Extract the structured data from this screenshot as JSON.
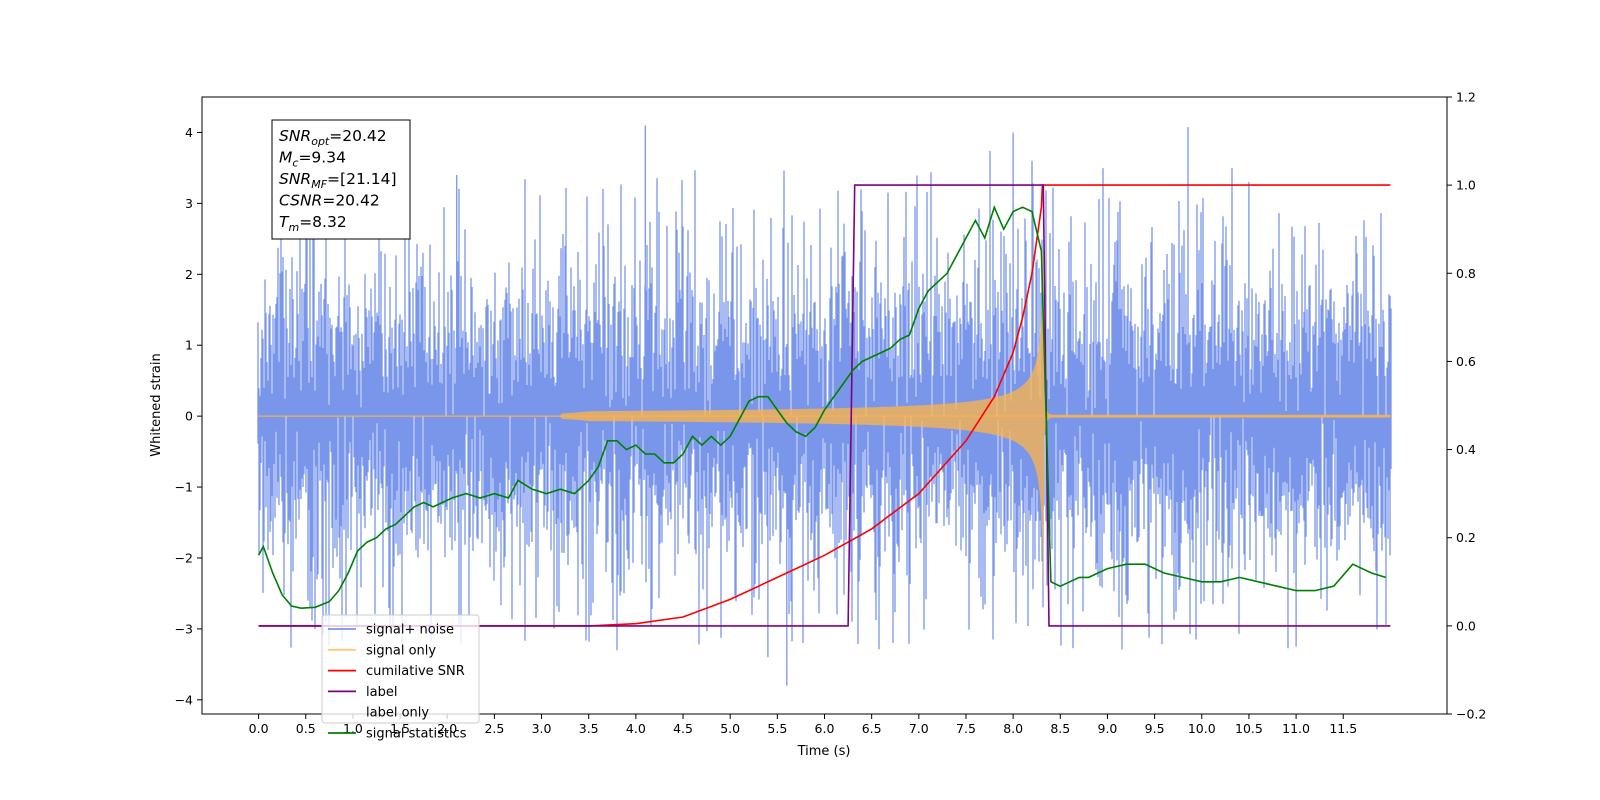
{
  "chart_data": {
    "type": "line",
    "xlabel": "Time (s)",
    "ylabel": "Whitened strain",
    "xlim": [
      -0.6,
      12.6
    ],
    "ylim": [
      -4.2,
      4.5
    ],
    "ylim_right": [
      -0.2,
      1.2
    ],
    "x_ticks": [
      "0.0",
      "0.5",
      "1.0",
      "1.5",
      "2.0",
      "2.5",
      "3.0",
      "3.5",
      "4.0",
      "4.5",
      "5.0",
      "5.5",
      "6.0",
      "6.5",
      "7.0",
      "7.5",
      "8.0",
      "8.5",
      "9.0",
      "9.5",
      "10.0",
      "10.5",
      "11.0",
      "11.5"
    ],
    "y_ticks_left": [
      "4",
      "3",
      "2",
      "1",
      "0",
      "−1",
      "−2",
      "−3",
      "−4"
    ],
    "y_ticks_right": [
      "1.2",
      "1.0",
      "0.8",
      "0.6",
      "0.4",
      "0.2",
      "0.0",
      "−0.2"
    ],
    "grid": false,
    "legend_placement": "lower-left",
    "info_box": {
      "lines": [
        {
          "base": "SNR",
          "sub": "opt",
          "value": "=20.42"
        },
        {
          "base": "M",
          "sub": "c",
          "value": "=9.34"
        },
        {
          "base": "SNR",
          "sub": "MF",
          "value": "=[21.14]"
        },
        {
          "base": "CSNR",
          "sub": "",
          "value": "=20.42"
        },
        {
          "base": "T",
          "sub": "m",
          "value": "=8.32"
        }
      ]
    },
    "series": [
      {
        "name": "signal+ noise",
        "color": "#4169e1",
        "alpha": 0.7,
        "axis": "left",
        "noise_std": 0.95,
        "x_range": [
          0.0,
          12.0
        ],
        "visible_peak_max": 4.1,
        "visible_peak_min": -3.8
      },
      {
        "name": "signal only",
        "color": "#ffb347",
        "alpha": 0.75,
        "axis": "left",
        "chirp_merger_time": 8.32,
        "chirp_end_amplitude": 3.0
      },
      {
        "name": "cumilative SNR",
        "color": "#ff0000",
        "axis": "right",
        "x": [
          0,
          3.5,
          4.0,
          4.5,
          5.0,
          5.5,
          6.0,
          6.5,
          7.0,
          7.5,
          7.8,
          8.0,
          8.1,
          8.2,
          8.3,
          8.31,
          12.0
        ],
        "y": [
          0,
          0,
          0.005,
          0.02,
          0.06,
          0.11,
          0.16,
          0.22,
          0.3,
          0.42,
          0.52,
          0.62,
          0.7,
          0.8,
          0.95,
          1.0,
          1.0
        ]
      },
      {
        "name": "label",
        "color": "#800080",
        "axis": "right",
        "x": [
          0,
          6.25,
          6.32,
          8.32,
          8.38,
          12.0
        ],
        "y": [
          0,
          0,
          1,
          1,
          0,
          0
        ]
      },
      {
        "name": "label only",
        "color": "#aaaaaa",
        "axis": "right",
        "legend_only": true
      },
      {
        "name": "signal statistics",
        "color": "#008000",
        "axis": "right",
        "x": [
          0,
          0.05,
          0.15,
          0.25,
          0.35,
          0.45,
          0.6,
          0.75,
          0.85,
          0.95,
          1.05,
          1.15,
          1.25,
          1.35,
          1.45,
          1.55,
          1.65,
          1.75,
          1.85,
          1.95,
          2.05,
          2.2,
          2.35,
          2.5,
          2.65,
          2.75,
          2.9,
          3.05,
          3.2,
          3.35,
          3.5,
          3.6,
          3.7,
          3.8,
          3.9,
          4.0,
          4.1,
          4.2,
          4.3,
          4.4,
          4.5,
          4.6,
          4.7,
          4.8,
          4.9,
          5.0,
          5.1,
          5.2,
          5.3,
          5.4,
          5.5,
          5.6,
          5.7,
          5.8,
          5.9,
          6.0,
          6.1,
          6.2,
          6.3,
          6.4,
          6.5,
          6.6,
          6.7,
          6.8,
          6.9,
          7.0,
          7.1,
          7.2,
          7.3,
          7.4,
          7.5,
          7.6,
          7.7,
          7.8,
          7.9,
          8.0,
          8.1,
          8.2,
          8.3,
          8.4,
          8.5,
          8.6,
          8.7,
          8.8,
          8.9,
          9.0,
          9.2,
          9.4,
          9.6,
          9.8,
          10.0,
          10.2,
          10.4,
          10.6,
          10.8,
          11.0,
          11.2,
          11.4,
          11.6,
          11.8,
          11.95
        ],
        "y": [
          0.16,
          0.18,
          0.12,
          0.07,
          0.045,
          0.04,
          0.042,
          0.055,
          0.08,
          0.12,
          0.17,
          0.19,
          0.2,
          0.22,
          0.23,
          0.25,
          0.27,
          0.28,
          0.27,
          0.28,
          0.29,
          0.3,
          0.29,
          0.3,
          0.29,
          0.33,
          0.31,
          0.3,
          0.31,
          0.3,
          0.33,
          0.36,
          0.42,
          0.42,
          0.4,
          0.41,
          0.39,
          0.39,
          0.37,
          0.37,
          0.39,
          0.43,
          0.41,
          0.43,
          0.41,
          0.43,
          0.47,
          0.51,
          0.52,
          0.52,
          0.49,
          0.46,
          0.44,
          0.43,
          0.45,
          0.49,
          0.52,
          0.55,
          0.58,
          0.6,
          0.61,
          0.62,
          0.63,
          0.65,
          0.66,
          0.72,
          0.76,
          0.78,
          0.8,
          0.84,
          0.88,
          0.92,
          0.88,
          0.95,
          0.9,
          0.94,
          0.95,
          0.94,
          0.85,
          0.1,
          0.09,
          0.1,
          0.11,
          0.11,
          0.12,
          0.13,
          0.14,
          0.14,
          0.12,
          0.11,
          0.1,
          0.1,
          0.11,
          0.1,
          0.09,
          0.08,
          0.08,
          0.09,
          0.14,
          0.12,
          0.11
        ]
      }
    ]
  }
}
